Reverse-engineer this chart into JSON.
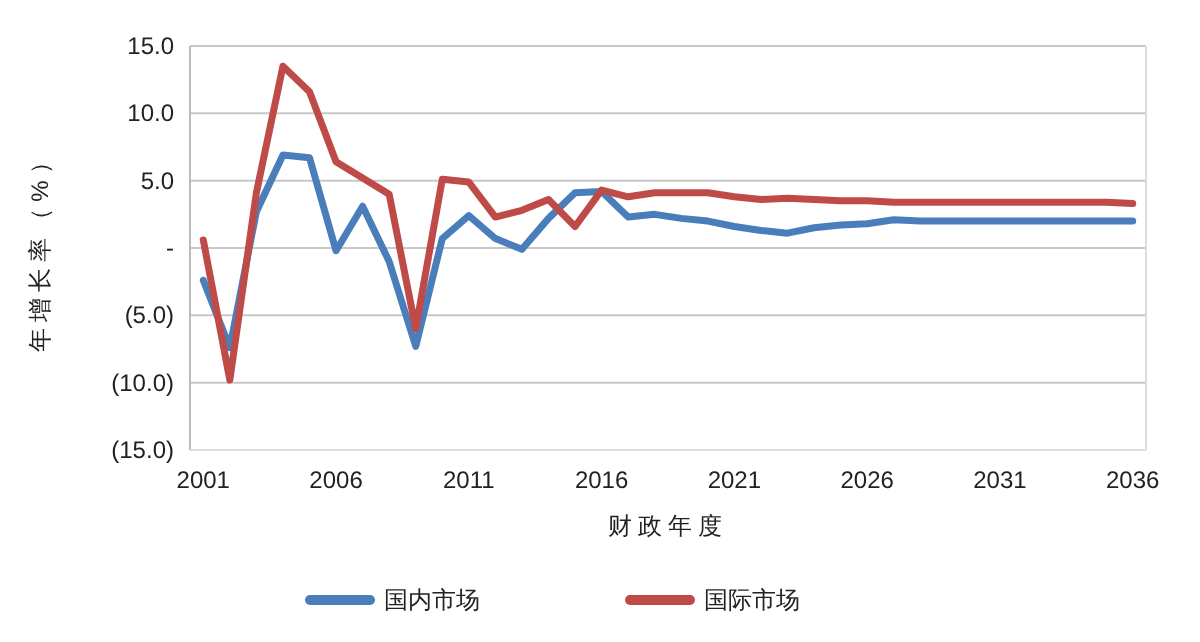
{
  "chart_data": {
    "type": "line",
    "ylabel": "年增长率（%）",
    "xlabel": "财政年度",
    "categories": [
      "2001",
      null,
      null,
      null,
      null,
      "2006",
      null,
      null,
      null,
      null,
      "2011",
      null,
      null,
      null,
      null,
      "2016",
      null,
      null,
      null,
      null,
      "2021",
      null,
      null,
      null,
      null,
      "2026",
      null,
      null,
      null,
      null,
      "2031",
      null,
      null,
      null,
      null,
      "2036"
    ],
    "ylim": [
      -15,
      15
    ],
    "yticks": [
      {
        "value": -15,
        "label": "(15.0)"
      },
      {
        "value": -10,
        "label": "(10.0)"
      },
      {
        "value": -5,
        "label": "(5.0)"
      },
      {
        "value": 0,
        "label": "-"
      },
      {
        "value": 5,
        "label": "5.0"
      },
      {
        "value": 10,
        "label": "10.0"
      },
      {
        "value": 15,
        "label": "15.0"
      }
    ],
    "grid": "y",
    "legend": "bottom",
    "marker": "none",
    "line_style": "solid",
    "series": [
      {
        "name": "国内市场",
        "color": "#4a7ebb",
        "values": [
          -2.4,
          -7.4,
          2.7,
          6.9,
          6.7,
          -0.2,
          3.1,
          -1.0,
          -7.3,
          0.7,
          2.4,
          0.7,
          -0.1,
          2.2,
          4.1,
          4.2,
          2.3,
          2.5,
          2.2,
          2.0,
          1.6,
          1.3,
          1.1,
          1.5,
          1.7,
          1.8,
          2.1,
          2.0,
          2.0,
          2.0,
          2.0,
          2.0,
          2.0,
          2.0,
          2.0,
          2.0
        ]
      },
      {
        "name": "国际市场",
        "color": "#be4b48",
        "values": [
          0.6,
          -9.8,
          4.1,
          13.5,
          11.6,
          6.4,
          5.2,
          4.0,
          -6.0,
          5.1,
          4.9,
          2.3,
          2.8,
          3.6,
          1.6,
          4.3,
          3.8,
          4.1,
          4.1,
          4.1,
          3.8,
          3.6,
          3.7,
          3.6,
          3.5,
          3.5,
          3.4,
          3.4,
          3.4,
          3.4,
          3.4,
          3.4,
          3.4,
          3.4,
          3.4,
          3.3
        ]
      }
    ]
  }
}
